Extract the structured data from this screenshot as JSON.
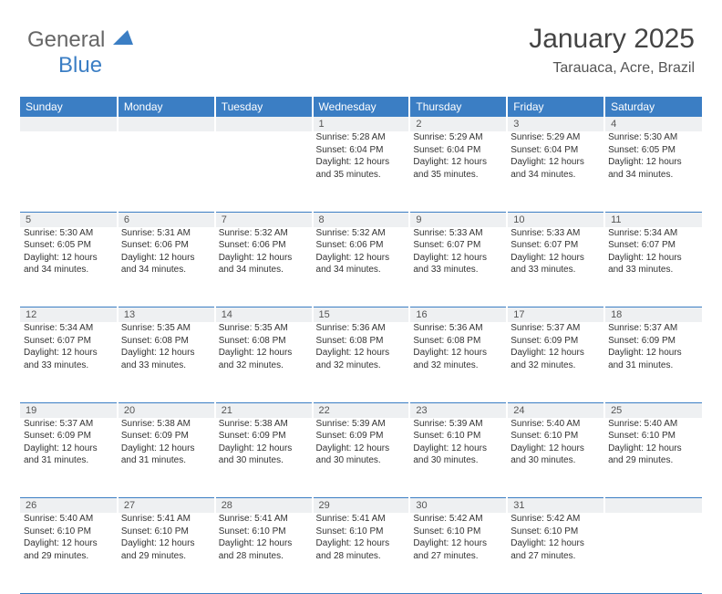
{
  "logo": {
    "text_a": "General",
    "text_b": "Blue"
  },
  "header": {
    "title": "January 2025",
    "location": "Tarauaca, Acre, Brazil"
  },
  "colors": {
    "accent": "#3b7ec4",
    "daynum_bg": "#eef0f2",
    "text": "#333333",
    "header_text": "#555555"
  },
  "dayNames": [
    "Sunday",
    "Monday",
    "Tuesday",
    "Wednesday",
    "Thursday",
    "Friday",
    "Saturday"
  ],
  "weeks": [
    [
      null,
      null,
      null,
      {
        "d": "1",
        "sr": "5:28 AM",
        "ss": "6:04 PM",
        "dl": "12 hours and 35 minutes."
      },
      {
        "d": "2",
        "sr": "5:29 AM",
        "ss": "6:04 PM",
        "dl": "12 hours and 35 minutes."
      },
      {
        "d": "3",
        "sr": "5:29 AM",
        "ss": "6:04 PM",
        "dl": "12 hours and 34 minutes."
      },
      {
        "d": "4",
        "sr": "5:30 AM",
        "ss": "6:05 PM",
        "dl": "12 hours and 34 minutes."
      }
    ],
    [
      {
        "d": "5",
        "sr": "5:30 AM",
        "ss": "6:05 PM",
        "dl": "12 hours and 34 minutes."
      },
      {
        "d": "6",
        "sr": "5:31 AM",
        "ss": "6:06 PM",
        "dl": "12 hours and 34 minutes."
      },
      {
        "d": "7",
        "sr": "5:32 AM",
        "ss": "6:06 PM",
        "dl": "12 hours and 34 minutes."
      },
      {
        "d": "8",
        "sr": "5:32 AM",
        "ss": "6:06 PM",
        "dl": "12 hours and 34 minutes."
      },
      {
        "d": "9",
        "sr": "5:33 AM",
        "ss": "6:07 PM",
        "dl": "12 hours and 33 minutes."
      },
      {
        "d": "10",
        "sr": "5:33 AM",
        "ss": "6:07 PM",
        "dl": "12 hours and 33 minutes."
      },
      {
        "d": "11",
        "sr": "5:34 AM",
        "ss": "6:07 PM",
        "dl": "12 hours and 33 minutes."
      }
    ],
    [
      {
        "d": "12",
        "sr": "5:34 AM",
        "ss": "6:07 PM",
        "dl": "12 hours and 33 minutes."
      },
      {
        "d": "13",
        "sr": "5:35 AM",
        "ss": "6:08 PM",
        "dl": "12 hours and 33 minutes."
      },
      {
        "d": "14",
        "sr": "5:35 AM",
        "ss": "6:08 PM",
        "dl": "12 hours and 32 minutes."
      },
      {
        "d": "15",
        "sr": "5:36 AM",
        "ss": "6:08 PM",
        "dl": "12 hours and 32 minutes."
      },
      {
        "d": "16",
        "sr": "5:36 AM",
        "ss": "6:08 PM",
        "dl": "12 hours and 32 minutes."
      },
      {
        "d": "17",
        "sr": "5:37 AM",
        "ss": "6:09 PM",
        "dl": "12 hours and 32 minutes."
      },
      {
        "d": "18",
        "sr": "5:37 AM",
        "ss": "6:09 PM",
        "dl": "12 hours and 31 minutes."
      }
    ],
    [
      {
        "d": "19",
        "sr": "5:37 AM",
        "ss": "6:09 PM",
        "dl": "12 hours and 31 minutes."
      },
      {
        "d": "20",
        "sr": "5:38 AM",
        "ss": "6:09 PM",
        "dl": "12 hours and 31 minutes."
      },
      {
        "d": "21",
        "sr": "5:38 AM",
        "ss": "6:09 PM",
        "dl": "12 hours and 30 minutes."
      },
      {
        "d": "22",
        "sr": "5:39 AM",
        "ss": "6:09 PM",
        "dl": "12 hours and 30 minutes."
      },
      {
        "d": "23",
        "sr": "5:39 AM",
        "ss": "6:10 PM",
        "dl": "12 hours and 30 minutes."
      },
      {
        "d": "24",
        "sr": "5:40 AM",
        "ss": "6:10 PM",
        "dl": "12 hours and 30 minutes."
      },
      {
        "d": "25",
        "sr": "5:40 AM",
        "ss": "6:10 PM",
        "dl": "12 hours and 29 minutes."
      }
    ],
    [
      {
        "d": "26",
        "sr": "5:40 AM",
        "ss": "6:10 PM",
        "dl": "12 hours and 29 minutes."
      },
      {
        "d": "27",
        "sr": "5:41 AM",
        "ss": "6:10 PM",
        "dl": "12 hours and 29 minutes."
      },
      {
        "d": "28",
        "sr": "5:41 AM",
        "ss": "6:10 PM",
        "dl": "12 hours and 28 minutes."
      },
      {
        "d": "29",
        "sr": "5:41 AM",
        "ss": "6:10 PM",
        "dl": "12 hours and 28 minutes."
      },
      {
        "d": "30",
        "sr": "5:42 AM",
        "ss": "6:10 PM",
        "dl": "12 hours and 27 minutes."
      },
      {
        "d": "31",
        "sr": "5:42 AM",
        "ss": "6:10 PM",
        "dl": "12 hours and 27 minutes."
      },
      null
    ]
  ],
  "labels": {
    "sunrise": "Sunrise:",
    "sunset": "Sunset:",
    "daylight": "Daylight:"
  }
}
